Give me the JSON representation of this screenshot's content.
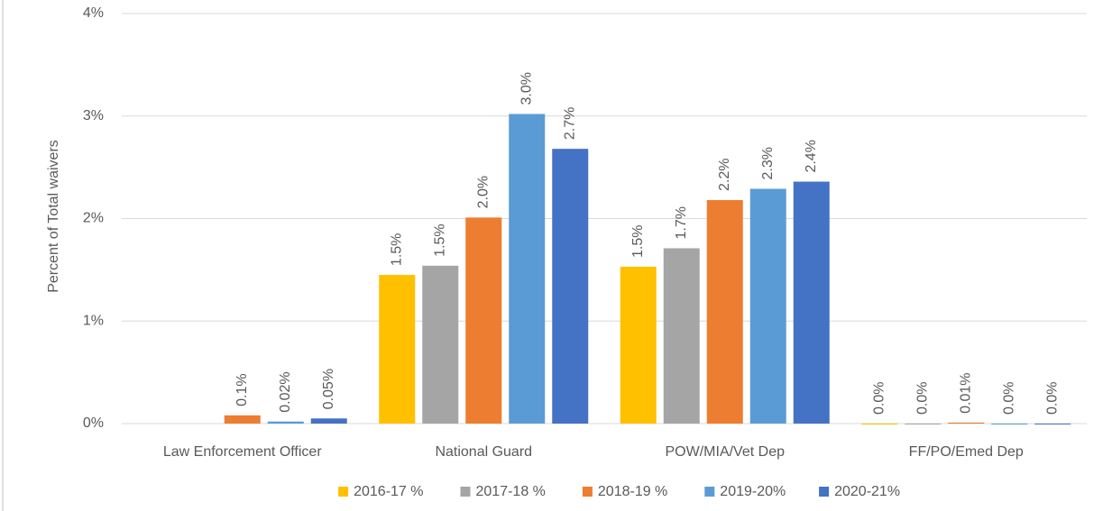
{
  "chart_data": {
    "type": "bar",
    "y_label": "Percent of Total waivers",
    "categories": [
      "Law Enforcement Officer",
      "National Guard",
      "POW/MIA/Vet Dep",
      "FF/PO/Emed Dep"
    ],
    "series": [
      {
        "name": "2016-17 %",
        "color": "#ffc000",
        "values": [
          null,
          1.45,
          1.53,
          0.0
        ],
        "value_labels": [
          null,
          "1.5%",
          "1.5%",
          "0.0%"
        ]
      },
      {
        "name": "2017-18 %",
        "color": "#a5a5a5",
        "values": [
          null,
          1.54,
          1.71,
          0.0
        ],
        "value_labels": [
          null,
          "1.5%",
          "1.7%",
          "0.0%"
        ]
      },
      {
        "name": "2018-19 %",
        "color": "#ed7d31",
        "values": [
          0.08,
          2.01,
          2.18,
          0.01
        ],
        "value_labels": [
          "0.1%",
          "2.0%",
          "2.2%",
          "0.01%"
        ]
      },
      {
        "name": "2019-20%",
        "color": "#5b9bd5",
        "values": [
          0.02,
          3.02,
          2.29,
          0.0
        ],
        "value_labels": [
          "0.02%",
          "3.0%",
          "2.3%",
          "0.0%"
        ]
      },
      {
        "name": "2020-21%",
        "color": "#4472c4",
        "values": [
          0.05,
          2.68,
          2.36,
          0.0
        ],
        "value_labels": [
          "0.05%",
          "2.7%",
          "2.4%",
          "0.0%"
        ]
      }
    ],
    "ylim": [
      0,
      4
    ],
    "yticks": [
      {
        "value": 0,
        "label": "0%"
      },
      {
        "value": 1,
        "label": "1%"
      },
      {
        "value": 2,
        "label": "2%"
      },
      {
        "value": 3,
        "label": "3%"
      },
      {
        "value": 4,
        "label": "4%"
      }
    ],
    "grid": true,
    "legend": "bottom"
  }
}
